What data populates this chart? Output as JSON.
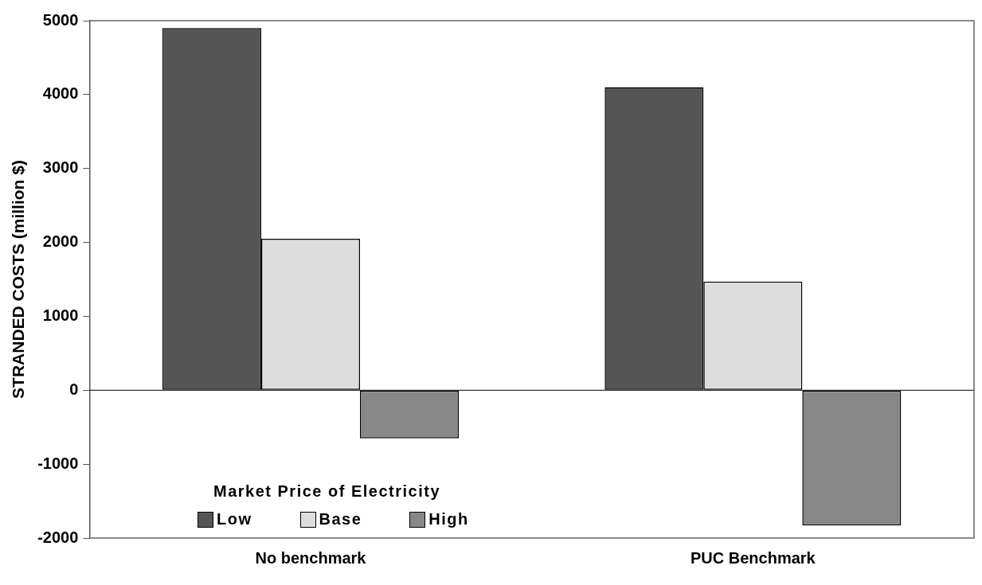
{
  "chart_data": {
    "type": "bar",
    "ylabel": "STRANDED COSTS (million $)",
    "legend_title": "Market Price of Electricity",
    "categories": [
      "No benchmark",
      "PUC Benchmark"
    ],
    "series": [
      {
        "name": "Low",
        "color": "#555555",
        "values": [
          4900,
          4100
        ]
      },
      {
        "name": "Base",
        "color": "#dddddd",
        "values": [
          2050,
          1470
        ]
      },
      {
        "name": "High",
        "color": "#888888",
        "values": [
          -650,
          -1830
        ]
      }
    ],
    "ylim": [
      -2000,
      5000
    ],
    "yticks": [
      -2000,
      -1000,
      0,
      1000,
      2000,
      3000,
      4000,
      5000
    ],
    "grid": false,
    "ref_lines": [
      {
        "axis": "y",
        "value": 0,
        "color": "#000000"
      }
    ],
    "legend": "bottom left"
  }
}
